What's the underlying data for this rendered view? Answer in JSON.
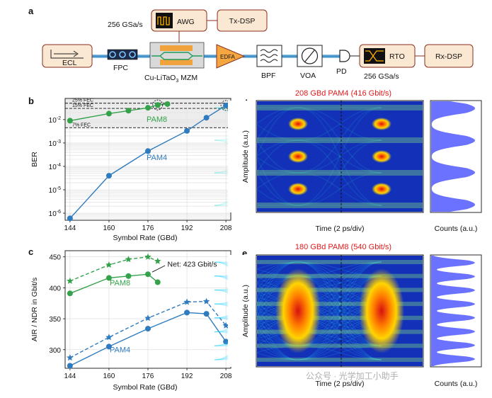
{
  "panel_labels": {
    "a": "a",
    "b": "b",
    "c": "c",
    "d": "d",
    "e": "e"
  },
  "setup": {
    "sample_rate_tx": "256 GSa/s",
    "awg": "AWG",
    "tx_dsp": "Tx-DSP",
    "ecl": "ECL",
    "fpc": "FPC",
    "mzm_prefix": "Cu-LiTaO",
    "mzm_sub": "3",
    "mzm_suffix": " MZM",
    "edfa": "EDFA",
    "bpf": "BPF",
    "voa": "VOA",
    "pd": "PD",
    "rto": "RTO",
    "rx_dsp": "Rx-DSP",
    "sample_rate_rx": "256 GSa/s"
  },
  "colors": {
    "pam8": "#33a24a",
    "pam4": "#2f7bbf",
    "red_title": "#e0191c",
    "hist": "#6a72ff"
  },
  "chart_data": [
    {
      "id": "b",
      "type": "line",
      "yscale": "log",
      "xlabel": "Symbol Rate (GBd)",
      "ylabel": "BER",
      "xticks": [
        144,
        160,
        176,
        192,
        208
      ],
      "xlim": [
        142,
        210
      ],
      "ylim": [
        5e-07,
        0.08
      ],
      "yticks": [
        {
          "v": 1e-06,
          "base": "10",
          "exp": "-6"
        },
        {
          "v": 1e-05,
          "base": "10",
          "exp": "-5"
        },
        {
          "v": 0.0001,
          "base": "10",
          "exp": "-4"
        },
        {
          "v": 0.001,
          "base": "10",
          "exp": "-3"
        },
        {
          "v": 0.01,
          "base": "10",
          "exp": "-2"
        }
      ],
      "thresholds": [
        {
          "label": "25% FEC",
          "value": 0.05
        },
        {
          "label": "15% FEC",
          "value": 0.03
        },
        {
          "label": "7% FEC",
          "value": 0.0045
        }
      ],
      "series": [
        {
          "name": "PAM8",
          "x": [
            144,
            160,
            168,
            176,
            180,
            184
          ],
          "values": [
            0.009,
            0.018,
            0.024,
            0.032,
            0.042,
            0.046
          ]
        },
        {
          "name": "PAM4",
          "x": [
            144,
            160,
            176,
            192,
            200,
            208
          ],
          "values": [
            6e-07,
            4e-05,
            0.00045,
            0.0033,
            0.012,
            0.04
          ]
        }
      ],
      "circled": [
        {
          "x": 180,
          "y": 0.042
        },
        {
          "x": 208,
          "y": 0.04
        }
      ],
      "series_labels": {
        "pam8": "PAM8",
        "pam4": "PAM4"
      }
    },
    {
      "id": "c",
      "type": "line",
      "xlabel": "Symbol Rate (GBd)",
      "ylabel": "AIR / NDR in Gbit/s",
      "xticks": [
        144,
        160,
        176,
        192,
        208
      ],
      "yticks": [
        300,
        350,
        400,
        450
      ],
      "xlim": [
        142,
        210
      ],
      "ylim": [
        270,
        460
      ],
      "annotation": "Net: 423 Gbit/s",
      "series": [
        {
          "name": "PAM8 AIR",
          "style": "dashed-star",
          "x": [
            144,
            160,
            168,
            176,
            180
          ],
          "values": [
            411,
            437,
            446,
            450,
            443
          ]
        },
        {
          "name": "PAM8 NDR",
          "style": "solid-circle",
          "x": [
            144,
            160,
            168,
            176,
            180
          ],
          "values": [
            391,
            416,
            419,
            422,
            409
          ]
        },
        {
          "name": "PAM4 AIR",
          "style": "dashed-star",
          "x": [
            144,
            160,
            176,
            192,
            200,
            208
          ],
          "values": [
            287,
            320,
            351,
            377,
            378,
            339
          ]
        },
        {
          "name": "PAM4 NDR",
          "style": "solid-circle",
          "x": [
            144,
            160,
            176,
            192,
            200,
            208
          ],
          "values": [
            274,
            305,
            334,
            360,
            358,
            313
          ]
        }
      ],
      "series_labels": {
        "pam8": "PAM8",
        "pam4": "PAM4"
      }
    }
  ],
  "eye_d": {
    "title": "208 GBd PAM4 (416 Gbit/s)",
    "ylabel": "Amplitude (a.u.)",
    "xlabel": "Time (2 ps/div)",
    "hist_label": "Counts (a.u.)",
    "levels": 4
  },
  "eye_e": {
    "title": "180 GBd PAM8 (540 Gbit/s)",
    "ylabel": "Amplitude (a.u.)",
    "xlabel": "Time (2 ps/div)",
    "hist_label": "Counts (a.u.)",
    "levels": 8
  },
  "watermark": "公众号 · 光学加工小助手"
}
